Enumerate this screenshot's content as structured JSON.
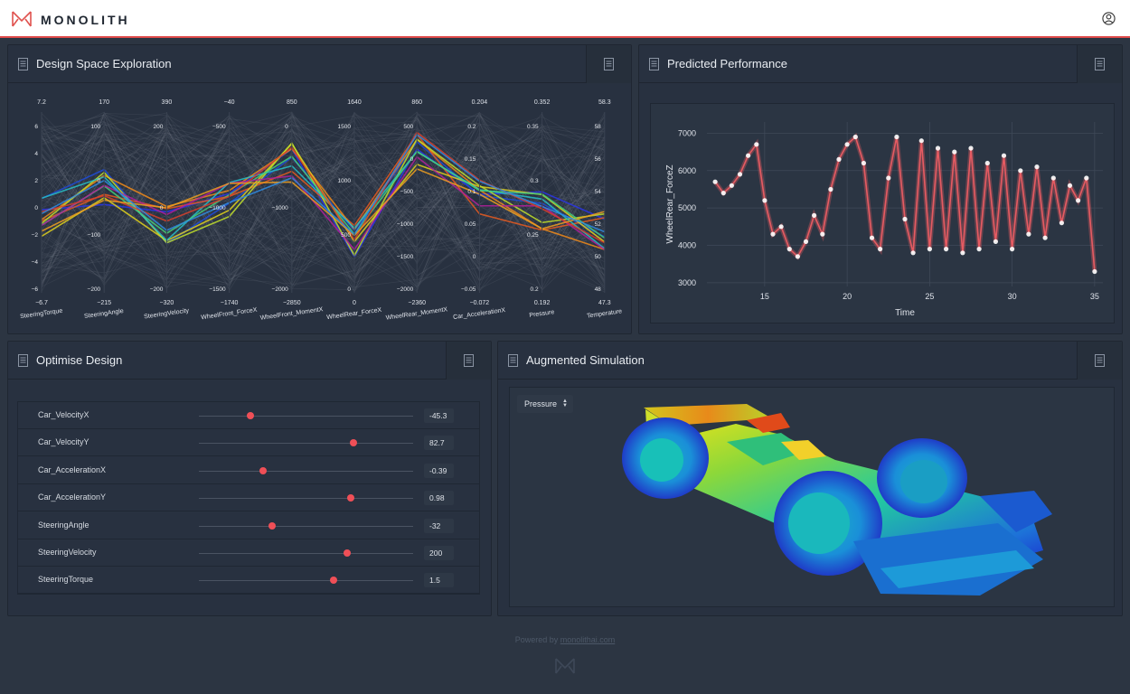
{
  "app": {
    "brand": "MONOLITH",
    "user_icon": "user-icon",
    "logo_icon": "monolith-logo-icon"
  },
  "panels": {
    "dse": {
      "title": "Design Space Exploration"
    },
    "perf": {
      "title": "Predicted Performance"
    },
    "opt": {
      "title": "Optimise Design"
    },
    "sim": {
      "title": "Augmented Simulation"
    }
  },
  "parallel_axes": [
    {
      "name": "SteeringTorque",
      "top": "7.2",
      "bottom": "−6.7",
      "ticks": [
        "6",
        "4",
        "2",
        "0",
        "−2",
        "−4",
        "−6"
      ]
    },
    {
      "name": "SteeringAngle",
      "top": "170",
      "bottom": "−215",
      "ticks": [
        "100",
        "0",
        "−100",
        "−200"
      ]
    },
    {
      "name": "SteeringVelocity",
      "top": "390",
      "bottom": "−320",
      "ticks": [
        "200",
        "0",
        "−200"
      ]
    },
    {
      "name": "WheelFront_ForceX",
      "top": "−40",
      "bottom": "−1740",
      "ticks": [
        "−500",
        "−1000",
        "−1500"
      ]
    },
    {
      "name": "WheelFront_MomentX",
      "top": "850",
      "bottom": "−2850",
      "ticks": [
        "0",
        "−1000",
        "−2000"
      ]
    },
    {
      "name": "WheelRear_ForceX",
      "top": "1640",
      "bottom": "0",
      "ticks": [
        "1500",
        "1000",
        "500",
        "0"
      ]
    },
    {
      "name": "WheelRear_MomentX",
      "top": "860",
      "bottom": "−2360",
      "ticks": [
        "500",
        "0",
        "−500",
        "−1000",
        "−1500",
        "−2000"
      ]
    },
    {
      "name": "Car_AccelerationX",
      "top": "0.204",
      "bottom": "−0.072",
      "ticks": [
        "0.2",
        "0.15",
        "0.1",
        "0.05",
        "0",
        "−0.05"
      ]
    },
    {
      "name": "Pressure",
      "top": "0.352",
      "bottom": "0.192",
      "ticks": [
        "0.35",
        "0.3",
        "0.25",
        "0.2"
      ]
    },
    {
      "name": "Temperature",
      "top": "58.3",
      "bottom": "47.3",
      "ticks": [
        "58",
        "56",
        "54",
        "52",
        "50",
        "48"
      ]
    }
  ],
  "chart_data": {
    "type": "line",
    "title": "Predicted Performance",
    "xlabel": "Time",
    "ylabel": "WheelRear_ForceZ",
    "xlim": [
      11.5,
      35.5
    ],
    "ylim": [
      2900,
      7300
    ],
    "x_ticks": [
      "15",
      "20",
      "25",
      "30",
      "35"
    ],
    "y_ticks": [
      "3000",
      "4000",
      "5000",
      "6000",
      "7000"
    ],
    "series": [
      {
        "x": [
          12,
          12.5,
          13,
          13.5,
          14,
          14.5,
          15,
          15.5,
          16,
          16.5,
          17,
          17.5,
          18,
          18.5,
          19,
          19.5,
          20,
          20.5,
          21,
          21.5,
          22,
          22.5,
          23,
          23.5,
          24,
          24.5,
          25,
          25.5,
          26,
          26.5,
          27,
          27.5,
          28,
          28.5,
          29,
          29.5,
          30,
          30.5,
          31,
          31.5,
          32,
          32.5,
          33,
          33.5,
          34,
          34.5,
          35
        ],
        "values": [
          5700,
          5400,
          5600,
          5900,
          6400,
          6700,
          5200,
          4300,
          4500,
          3900,
          3700,
          4100,
          4800,
          4300,
          5500,
          6300,
          6700,
          6900,
          6200,
          4200,
          3900,
          5800,
          6900,
          4700,
          3800,
          6800,
          3900,
          6600,
          3900,
          6500,
          3800,
          6600,
          3900,
          6200,
          4100,
          6400,
          3900,
          6000,
          4300,
          6100,
          4200,
          5800,
          4600,
          5600,
          5200,
          5800,
          3300
        ]
      }
    ],
    "line_color": "#e65b62",
    "marker_color": "#ffffff"
  },
  "sliders": [
    {
      "label": "Car_VelocityX",
      "value": "-45.3",
      "fraction": 0.24
    },
    {
      "label": "Car_VelocityY",
      "value": "82.7",
      "fraction": 0.72
    },
    {
      "label": "Car_AccelerationX",
      "value": "-0.39",
      "fraction": 0.3
    },
    {
      "label": "Car_AccelerationY",
      "value": "0.98",
      "fraction": 0.71
    },
    {
      "label": "SteeringAngle",
      "value": "-32",
      "fraction": 0.34
    },
    {
      "label": "SteeringVelocity",
      "value": "200",
      "fraction": 0.69
    },
    {
      "label": "SteeringTorque",
      "value": "1.5",
      "fraction": 0.63
    }
  ],
  "simulation": {
    "field_select": "Pressure"
  },
  "footer": {
    "text": "Powered by",
    "link": "monolithai.com"
  },
  "colors": {
    "accent": "#ef4f57",
    "panel": "#283140",
    "background": "#2c3542"
  }
}
